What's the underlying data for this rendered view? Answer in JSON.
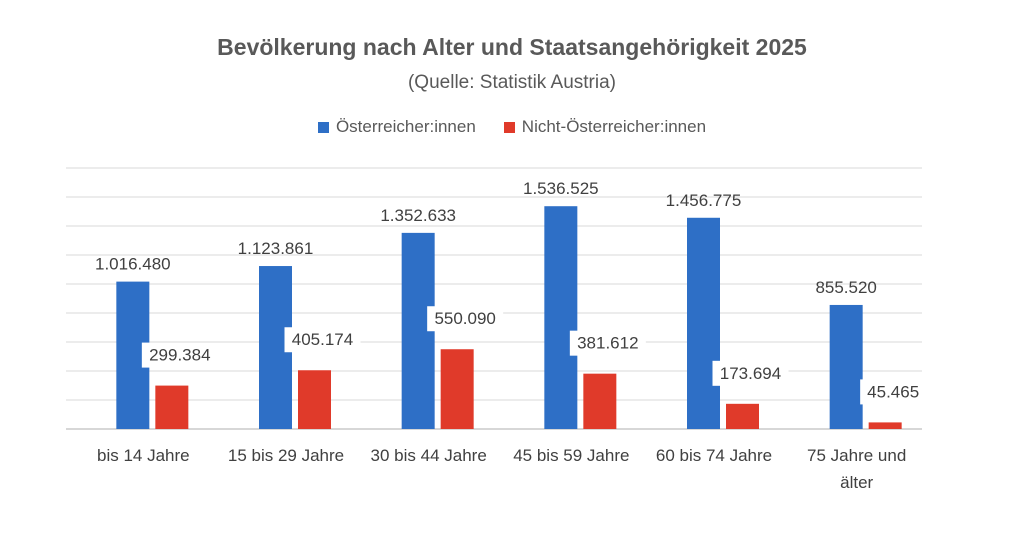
{
  "chart_data": {
    "type": "bar",
    "title": "Bevölkerung nach Alter und Staatsangehörigkeit 2025",
    "subtitle": "(Quelle: Statistik Austria)",
    "categories": [
      [
        "bis 14 Jahre"
      ],
      [
        "15 bis 29 Jahre"
      ],
      [
        "30 bis 44 Jahre"
      ],
      [
        "45 bis 59 Jahre"
      ],
      [
        "60 bis 74 Jahre"
      ],
      [
        "75 Jahre und",
        "älter"
      ]
    ],
    "series": [
      {
        "name": "Österreicher:innen",
        "color": "#2e6fc6",
        "values": [
          1016480,
          1123861,
          1352633,
          1536525,
          1456775,
          855520
        ],
        "labels": [
          "1.016.480",
          "1.123.861",
          "1.352.633",
          "1.536.525",
          "1.456.775",
          "855.520"
        ]
      },
      {
        "name": "Nicht-Österreicher:innen",
        "color": "#e03a2a",
        "values": [
          299384,
          405174,
          550090,
          381612,
          173694,
          45465
        ],
        "labels": [
          "299.384",
          "405.174",
          "550.090",
          "381.612",
          "173.694",
          "45.465"
        ]
      }
    ],
    "xlabel": "",
    "ylabel": "",
    "ylim": [
      0,
      1800000
    ],
    "grid": true,
    "legend_position": "top-center"
  }
}
